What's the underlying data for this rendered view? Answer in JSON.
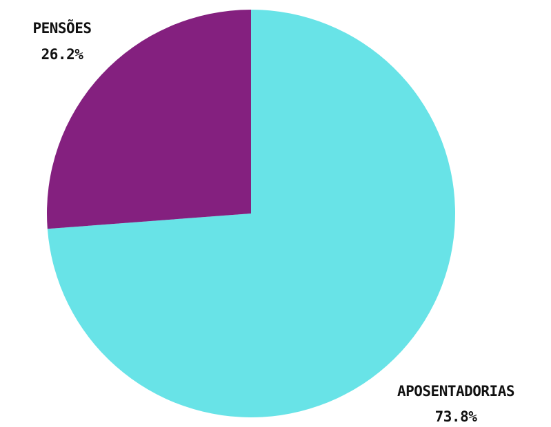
{
  "chart_data": {
    "type": "pie",
    "slices": [
      {
        "label": "APOSENTADORIAS",
        "value": 73.8,
        "value_label": "73.8%",
        "color": "#68e3e7"
      },
      {
        "label": "PENSÕES",
        "value": 26.2,
        "value_label": "26.2%",
        "color": "#84207f"
      }
    ]
  }
}
